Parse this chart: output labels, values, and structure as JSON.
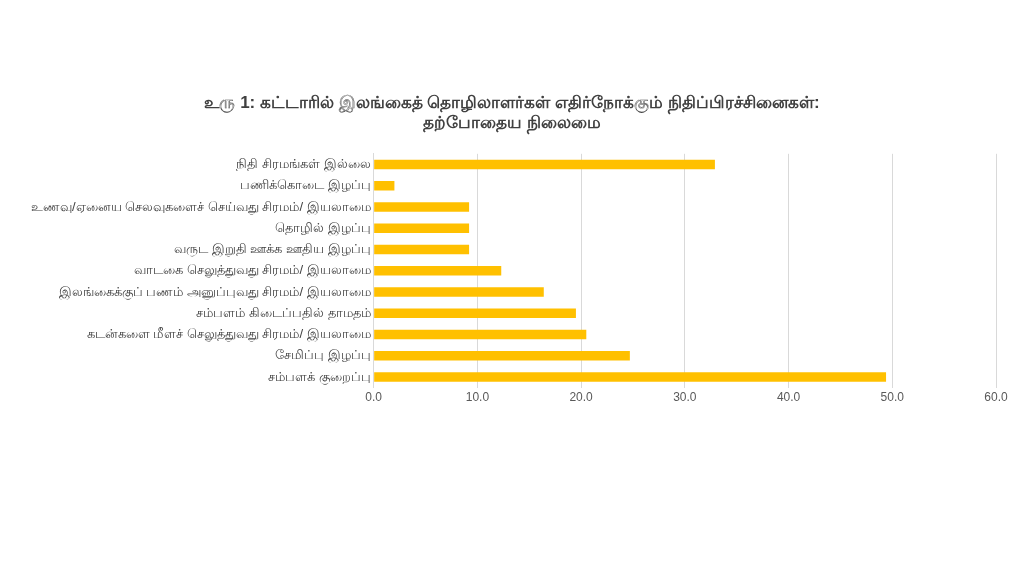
{
  "chart_data": {
    "type": "bar",
    "orientation": "horizontal",
    "title": "உரு 1: கட்டாரில் இலங்கைத் தொழிலாளர்கள் எதிர்நோக்கும் நிதிப்பிரச்சினைகள்:\nதற்போதைய நிலைமை",
    "categories": [
      "நிதி சிரமங்கள் இல்லை",
      "பணிக்கொடை இழப்பு",
      "உணவு/ஏனைய செலவுகளைச் செய்வது சிரமம்/ இயலாமை",
      "தொழில் இழப்பு",
      "வருட இறுதி ஊக்க ஊதிய இழப்பு",
      "வாடகை செலுத்துவது சிரமம்/ இயலாமை",
      "இலங்கைக்குப் பணம் அனுப்புவது சிரமம்/ இயலாமை",
      "சம்பளம் கிடைப்பதில் தாமதம்",
      "கடன்களை மீளச் செலுத்துவது சிரமம்/ இயலாமை",
      "சேமிப்பு இழப்பு",
      "சம்பளக் குறைப்பு"
    ],
    "values": [
      32.9,
      2.0,
      9.2,
      9.2,
      9.2,
      12.3,
      16.4,
      19.5,
      20.5,
      24.7,
      49.4
    ],
    "color": "#ffc000",
    "xlim": [
      0,
      60
    ],
    "xticks": [
      {
        "value": 0,
        "label": "0.0"
      },
      {
        "value": 10,
        "label": "10.0"
      },
      {
        "value": 20,
        "label": "20.0"
      },
      {
        "value": 30,
        "label": "30.0"
      },
      {
        "value": 40,
        "label": "40.0"
      },
      {
        "value": 50,
        "label": "50.0"
      },
      {
        "value": 60,
        "label": "60.0"
      }
    ],
    "grid": "x"
  }
}
